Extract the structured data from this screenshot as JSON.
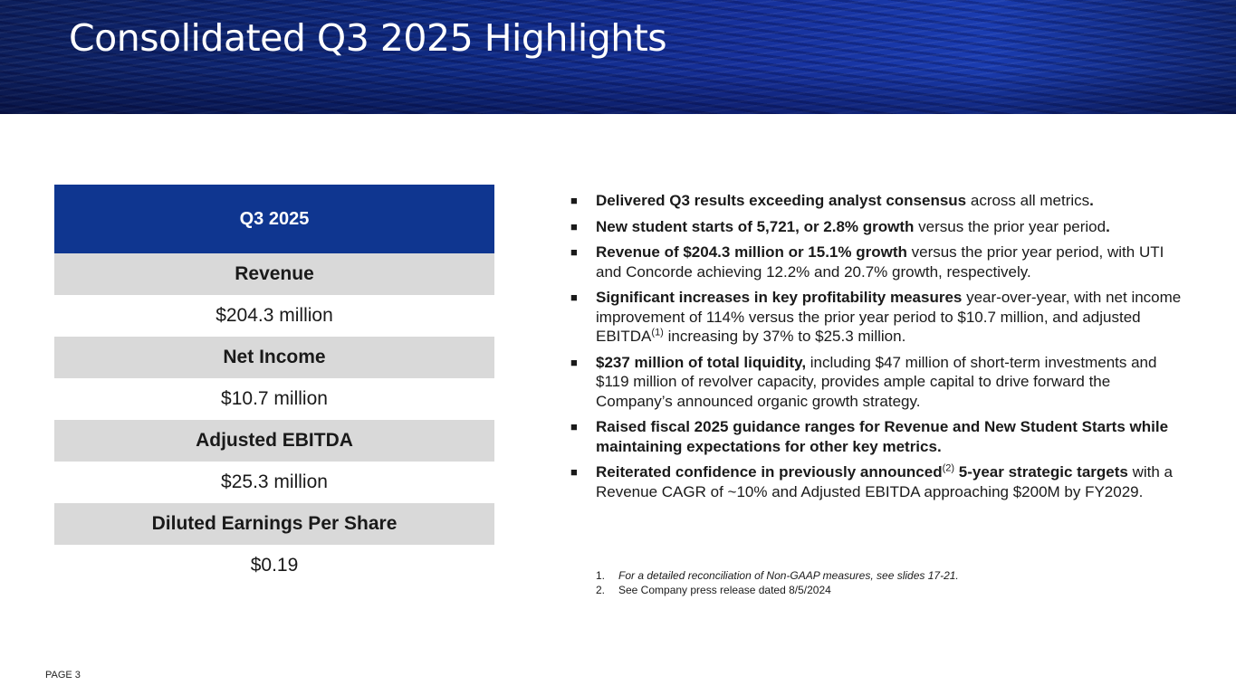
{
  "slide": {
    "title": "Consolidated Q3 2025 Highlights",
    "page_label": "PAGE 3"
  },
  "metrics": {
    "header": "Q3 2025",
    "rows": [
      {
        "label": "Revenue",
        "value": "$204.3 million"
      },
      {
        "label": "Net Income",
        "value": "$10.7 million"
      },
      {
        "label": "Adjusted EBITDA",
        "value": "$25.3 million"
      },
      {
        "label": "Diluted Earnings Per Share",
        "value": "$0.19"
      }
    ]
  },
  "bullet_marker": "■",
  "bullets": [
    {
      "bold": "Delivered Q3 results exceeding analyst consensus",
      "rest": " across all metrics",
      "end": "."
    },
    {
      "bold": "New student starts of 5,721, or 2.8% growth",
      "rest": " versus the prior year period",
      "end": "."
    },
    {
      "bold": "Revenue of $204.3 million or 15.1% growth",
      "rest": " versus the prior year period, with UTI and Concorde achieving 12.2% and 20.7% growth, respectively."
    },
    {
      "bold": "Significant increases in key profitability measures",
      "rest": " year-over-year, with net income improvement of 114% versus the prior year period to $10.7 million, and adjusted EBITDA",
      "sup": "(1)",
      "rest2": " increasing by 37% to $25.3 million."
    },
    {
      "bold": "$237 million of total liquidity,",
      "rest": " including $47 million of short-term investments and $119 million of revolver capacity, provides ample capital to drive forward the Company’s announced organic growth strategy."
    },
    {
      "bold": "Raised fiscal 2025 guidance ranges for Revenue and New Student Starts while maintaining expectations for other key metrics."
    },
    {
      "bold": "Reiterated confidence in previously announced",
      "sup": "(2)",
      "bold2": " 5-year strategic targets",
      "rest2": " with a Revenue CAGR of ~10% and Adjusted EBITDA approaching $200M by FY2029."
    }
  ],
  "footnotes": [
    {
      "num": "1.",
      "text": "For a detailed reconciliation of Non-GAAP measures, see slides 17-21."
    },
    {
      "num": "2.",
      "text": "See Company press release dated 8/5/2024"
    }
  ]
}
